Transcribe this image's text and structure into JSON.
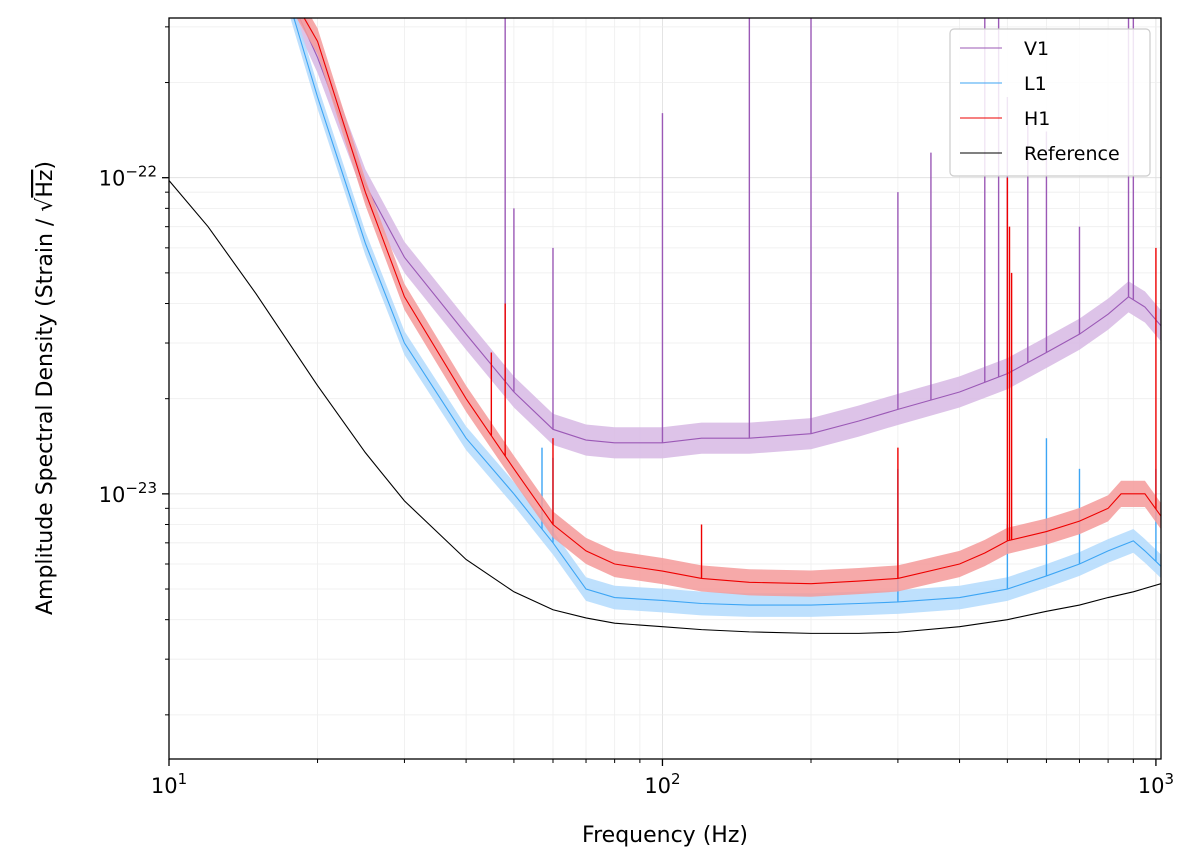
{
  "chart_data": {
    "type": "line",
    "xlabel": "Frequency (Hz)",
    "ylabel_prefix": "Amplitude Spectral Density (Strain / ",
    "ylabel_unit": "Hz",
    "ylabel_suffix": ")",
    "x_scale": "log",
    "y_scale": "log",
    "xlim": [
      10,
      1024
    ],
    "ylim": [
      1.45e-24,
      3.2e-22
    ],
    "x_ticks": [
      {
        "value": 10,
        "base": "10",
        "exp": "1"
      },
      {
        "value": 100,
        "base": "10",
        "exp": "2"
      },
      {
        "value": 1000,
        "base": "10",
        "exp": "3"
      }
    ],
    "y_ticks": [
      {
        "value": 1e-23,
        "base": "10",
        "exp": "−23"
      },
      {
        "value": 1e-22,
        "base": "10",
        "exp": "−22"
      }
    ],
    "grid": true,
    "legend_position": "top-right",
    "legend": [
      "V1",
      "L1",
      "H1",
      "Reference"
    ],
    "series": [
      {
        "name": "V1",
        "color": "#9b59b6",
        "band_color": "#d7b9e4",
        "band_factor": 1.12,
        "x": [
          17,
          20,
          25,
          30,
          40,
          50,
          60,
          70,
          80,
          100,
          120,
          150,
          200,
          250,
          300,
          400,
          500,
          600,
          700,
          800,
          880,
          950,
          1024
        ],
        "y": [
          4.2e-22,
          2.4e-22,
          9.5e-23,
          5.6e-23,
          3.2e-23,
          2.1e-23,
          1.6e-23,
          1.48e-23,
          1.45e-23,
          1.45e-23,
          1.5e-23,
          1.5e-23,
          1.55e-23,
          1.7e-23,
          1.85e-23,
          2.1e-23,
          2.4e-23,
          2.8e-23,
          3.2e-23,
          3.7e-23,
          4.2e-23,
          3.9e-23,
          3.4e-23
        ],
        "lines": [
          {
            "x": 48,
            "y": 3.2e-22
          },
          {
            "x": 50,
            "y": 8e-23
          },
          {
            "x": 60,
            "y": 6e-23
          },
          {
            "x": 100,
            "y": 1.6e-22
          },
          {
            "x": 150,
            "y": 3.2e-22
          },
          {
            "x": 200,
            "y": 3.2e-22
          },
          {
            "x": 300,
            "y": 9e-23
          },
          {
            "x": 350,
            "y": 1.2e-22
          },
          {
            "x": 450,
            "y": 3.2e-22
          },
          {
            "x": 480,
            "y": 3.2e-22
          },
          {
            "x": 500,
            "y": 1.8e-22
          },
          {
            "x": 550,
            "y": 1.5e-22
          },
          {
            "x": 600,
            "y": 1.4e-22
          },
          {
            "x": 700,
            "y": 7e-23
          },
          {
            "x": 880,
            "y": 3.2e-22
          },
          {
            "x": 900,
            "y": 3.2e-22
          }
        ]
      },
      {
        "name": "L1",
        "color": "#3da5f4",
        "band_color": "#b3dafd",
        "band_factor": 1.09,
        "x": [
          17,
          20,
          25,
          30,
          40,
          50,
          60,
          70,
          80,
          100,
          120,
          150,
          200,
          250,
          300,
          400,
          500,
          600,
          700,
          800,
          900,
          950,
          1024
        ],
        "y": [
          4.2e-22,
          1.8e-22,
          6.2e-23,
          3e-23,
          1.5e-23,
          1e-23,
          7e-24,
          5e-24,
          4.7e-24,
          4.6e-24,
          4.5e-24,
          4.45e-24,
          4.45e-24,
          4.5e-24,
          4.55e-24,
          4.7e-24,
          5e-24,
          5.5e-24,
          6e-24,
          6.6e-24,
          7.1e-24,
          6.6e-24,
          5.9e-24
        ],
        "lines": [
          {
            "x": 57,
            "y": 1.4e-23
          },
          {
            "x": 60,
            "y": 1.3e-23
          },
          {
            "x": 300,
            "y": 1.2e-23
          },
          {
            "x": 500,
            "y": 8e-24
          },
          {
            "x": 600,
            "y": 1.5e-23
          },
          {
            "x": 700,
            "y": 1.2e-23
          },
          {
            "x": 1000,
            "y": 1.2e-23
          }
        ]
      },
      {
        "name": "H1",
        "color": "#ee0000",
        "band_color": "#f49a9a",
        "band_factor": 1.1,
        "x": [
          17,
          20,
          25,
          30,
          40,
          50,
          60,
          70,
          80,
          100,
          120,
          150,
          200,
          250,
          300,
          400,
          450,
          500,
          600,
          700,
          800,
          850,
          950,
          1024
        ],
        "y": [
          4.2e-22,
          2.7e-22,
          9e-23,
          4.2e-23,
          2e-23,
          1.2e-23,
          8e-24,
          6.6e-24,
          6e-24,
          5.7e-24,
          5.4e-24,
          5.25e-24,
          5.2e-24,
          5.3e-24,
          5.4e-24,
          6e-24,
          6.5e-24,
          7.1e-24,
          7.6e-24,
          8.2e-24,
          9e-24,
          1e-23,
          1e-23,
          8.5e-24
        ],
        "lines": [
          {
            "x": 45,
            "y": 2.8e-23
          },
          {
            "x": 48,
            "y": 4e-23
          },
          {
            "x": 60,
            "y": 1.5e-23
          },
          {
            "x": 120,
            "y": 8e-24
          },
          {
            "x": 300,
            "y": 1.4e-23
          },
          {
            "x": 500,
            "y": 1e-22
          },
          {
            "x": 505,
            "y": 7e-23
          },
          {
            "x": 510,
            "y": 5e-23
          },
          {
            "x": 1000,
            "y": 6e-23
          }
        ]
      },
      {
        "name": "Reference",
        "color": "#000000",
        "x": [
          10,
          12,
          15,
          20,
          25,
          30,
          40,
          50,
          60,
          70,
          80,
          100,
          120,
          150,
          200,
          250,
          300,
          400,
          500,
          600,
          700,
          800,
          900,
          1024
        ],
        "y": [
          9.8e-23,
          7e-23,
          4.3e-23,
          2.2e-23,
          1.35e-23,
          9.5e-24,
          6.2e-24,
          4.9e-24,
          4.3e-24,
          4.05e-24,
          3.9e-24,
          3.8e-24,
          3.72e-24,
          3.66e-24,
          3.62e-24,
          3.62e-24,
          3.65e-24,
          3.8e-24,
          4e-24,
          4.25e-24,
          4.45e-24,
          4.7e-24,
          4.9e-24,
          5.2e-24
        ]
      }
    ]
  }
}
